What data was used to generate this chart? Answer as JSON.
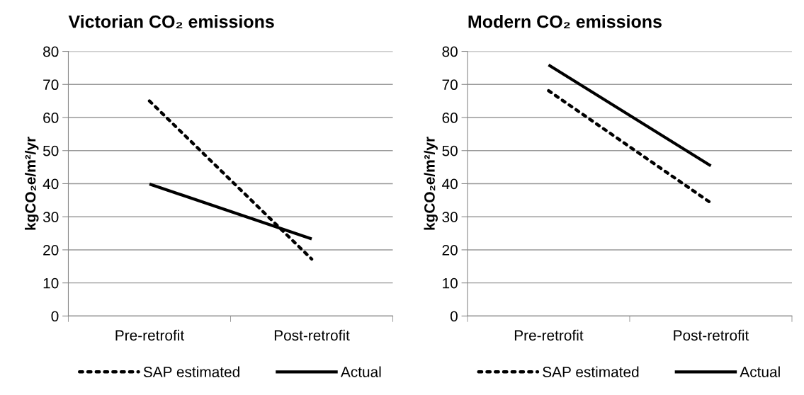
{
  "chart_data": [
    {
      "type": "line",
      "title": "Victorian CO₂ emissions",
      "ylabel": "kgCO₂e/m²/yr",
      "categories": [
        "Pre-retrofit",
        "Post-retrofit"
      ],
      "series": [
        {
          "name": "SAP estimated",
          "color": "#000000",
          "line_style": "dotted",
          "values": [
            65,
            17.2
          ]
        },
        {
          "name": "Actual",
          "color": "#000000",
          "line_style": "solid",
          "values": [
            39.9,
            23.3
          ]
        }
      ],
      "ylim": [
        0,
        80
      ],
      "yticks": [
        0,
        10,
        20,
        30,
        40,
        50,
        60,
        70,
        80
      ],
      "grid": "y",
      "legend": "bottom",
      "marker": "none"
    },
    {
      "type": "line",
      "title": "Modern CO₂ emissions",
      "ylabel": "kgCO₂e/m²/yr",
      "categories": [
        "Pre-retrofit",
        "Post-retrofit"
      ],
      "series": [
        {
          "name": "SAP estimated",
          "color": "#000000",
          "line_style": "dotted",
          "values": [
            68.1,
            34.2
          ]
        },
        {
          "name": "Actual",
          "color": "#000000",
          "line_style": "solid",
          "values": [
            75.9,
            45.4
          ]
        }
      ],
      "ylim": [
        0,
        80
      ],
      "yticks": [
        0,
        10,
        20,
        30,
        40,
        50,
        60,
        70,
        80
      ],
      "grid": "y",
      "legend": "bottom",
      "marker": "none"
    }
  ]
}
